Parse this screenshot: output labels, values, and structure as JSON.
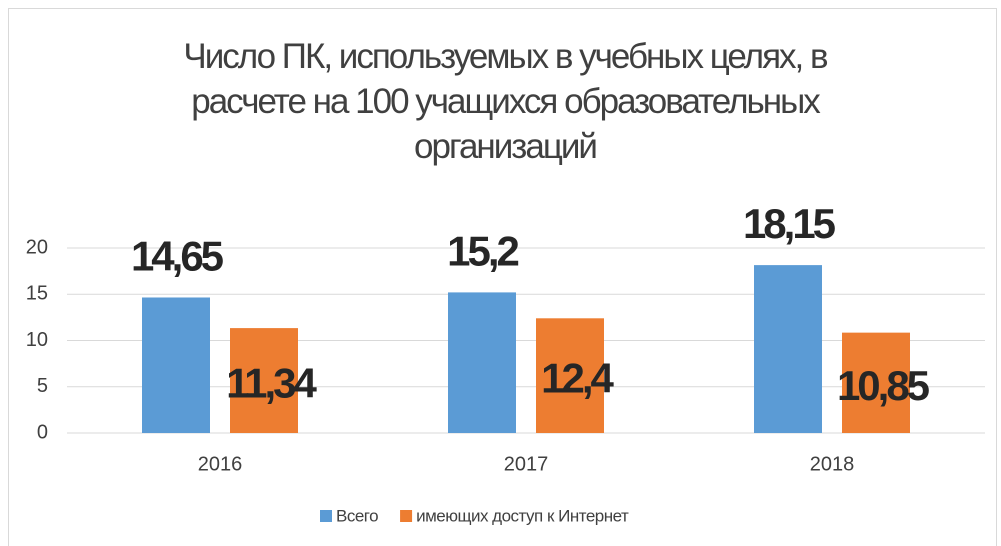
{
  "chart_data": {
    "type": "bar",
    "title": "Число ПК, используемых в учебных целях, в расчете на 100 учащихся образовательных организаций",
    "categories": [
      "2016",
      "2017",
      "2018"
    ],
    "series": [
      {
        "name": "Всего",
        "color": "#5b9bd5",
        "values": [
          14.65,
          15.2,
          18.15
        ],
        "value_labels": [
          "14,65",
          "15,2",
          "18,15"
        ]
      },
      {
        "name": "имеющих доступ к Интернет",
        "color": "#ed7d31",
        "values": [
          11.34,
          12.4,
          10.85
        ],
        "value_labels": [
          "11,34",
          "12,4",
          "10,85"
        ]
      }
    ],
    "ylim": [
      0,
      20
    ],
    "yticks": [
      0,
      5,
      10,
      15,
      20
    ],
    "grid": true,
    "legend": "bottom"
  }
}
